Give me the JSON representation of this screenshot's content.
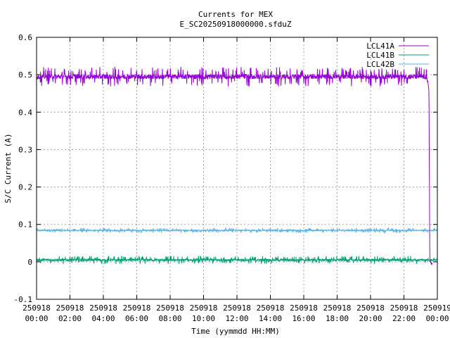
{
  "chart_data": {
    "type": "line",
    "title": "Currents for MEX",
    "subtitle": "E_SC20250918000000.sfduZ",
    "xlabel": "Time (yymmdd HH:MM)",
    "ylabel": "S/C Current (A)",
    "ylim": [
      -0.1,
      0.6
    ],
    "yticks": [
      "-0.1",
      "0",
      "0.1",
      "0.2",
      "0.3",
      "0.4",
      "0.5",
      "0.6"
    ],
    "ytick_values": [
      -0.1,
      0,
      0.1,
      0.2,
      0.3,
      0.4,
      0.5,
      0.6
    ],
    "xlim_hours": [
      0,
      24
    ],
    "xticks": [
      {
        "h": 0,
        "date": "250918",
        "time": "00:00"
      },
      {
        "h": 2,
        "date": "250918",
        "time": "02:00"
      },
      {
        "h": 4,
        "date": "250918",
        "time": "04:00"
      },
      {
        "h": 6,
        "date": "250918",
        "time": "06:00"
      },
      {
        "h": 8,
        "date": "250918",
        "time": "08:00"
      },
      {
        "h": 10,
        "date": "250918",
        "time": "10:00"
      },
      {
        "h": 12,
        "date": "250918",
        "time": "12:00"
      },
      {
        "h": 14,
        "date": "250918",
        "time": "14:00"
      },
      {
        "h": 16,
        "date": "250918",
        "time": "16:00"
      },
      {
        "h": 18,
        "date": "250918",
        "time": "18:00"
      },
      {
        "h": 20,
        "date": "250918",
        "time": "20:00"
      },
      {
        "h": 22,
        "date": "250918",
        "time": "22:00"
      },
      {
        "h": 24,
        "date": "250919",
        "time": "00:00"
      }
    ],
    "grid": true,
    "legend_position": "top-right",
    "series": [
      {
        "name": "LCL41A",
        "color": "#9400d3",
        "x_hours": [
          0,
          23.3,
          23.45,
          23.5,
          23.55,
          23.7
        ],
        "values": [
          0.495,
          0.495,
          0.48,
          0.45,
          0.0,
          -0.005
        ],
        "noise": 0.012
      },
      {
        "name": "LCL41B",
        "color": "#009e73",
        "x_hours": [
          0,
          24
        ],
        "values": [
          0.005,
          0.005
        ],
        "noise": 0.005
      },
      {
        "name": "LCL42B",
        "color": "#56b4e9",
        "x_hours": [
          0,
          24
        ],
        "values": [
          0.084,
          0.084
        ],
        "noise": 0.003
      }
    ]
  }
}
